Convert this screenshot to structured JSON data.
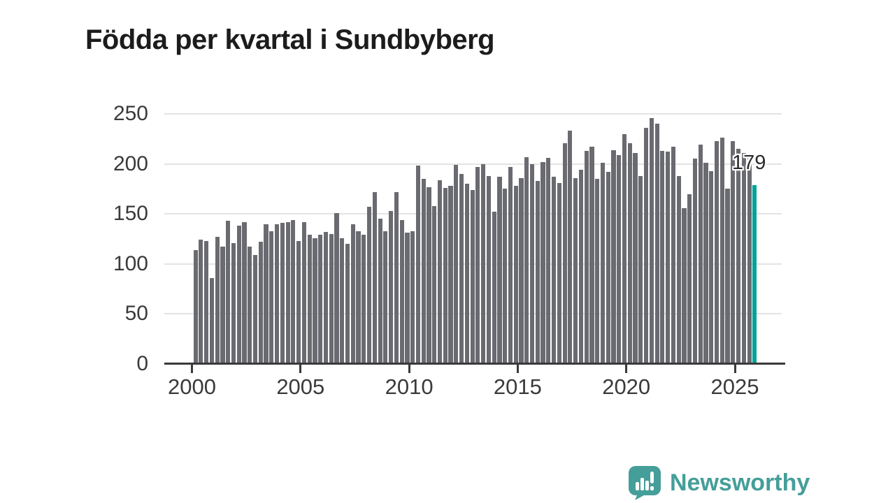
{
  "title": "Födda per kvartal i Sundbyberg",
  "chart_data": {
    "type": "bar",
    "title": "Födda per kvartal i Sundbyberg",
    "xlabel": "",
    "ylabel": "",
    "ylim": [
      0,
      250
    ],
    "grid": true,
    "y_ticks": [
      0,
      50,
      100,
      150,
      200,
      250
    ],
    "x_ticks": [
      2000,
      2005,
      2010,
      2015,
      2020,
      2025
    ],
    "x_start_year": 2000,
    "x_start_quarter": 1,
    "frequency": "quarterly",
    "bar_color": "#6a6a71",
    "highlight_color": "#00a39a",
    "highlight_index": 103,
    "highlight_label": "179",
    "values": [
      114,
      124,
      123,
      86,
      127,
      117,
      143,
      121,
      138,
      142,
      117,
      109,
      122,
      140,
      133,
      140,
      141,
      142,
      144,
      123,
      142,
      129,
      126,
      129,
      132,
      130,
      151,
      126,
      120,
      140,
      133,
      129,
      157,
      172,
      145,
      133,
      153,
      172,
      144,
      131,
      133,
      198,
      185,
      177,
      158,
      184,
      176,
      178,
      199,
      190,
      180,
      174,
      197,
      200,
      188,
      152,
      187,
      175,
      197,
      178,
      186,
      207,
      200,
      183,
      202,
      206,
      187,
      181,
      221,
      233,
      186,
      194,
      213,
      217,
      185,
      201,
      192,
      214,
      209,
      230,
      221,
      211,
      188,
      236,
      246,
      240,
      213,
      212,
      217,
      188,
      156,
      170,
      205,
      219,
      201,
      193,
      223,
      226,
      175,
      223,
      215,
      211,
      208,
      179
    ]
  },
  "annotation": {
    "text": "179"
  },
  "logo": {
    "text": "Newsworthy",
    "color": "#459e99",
    "icon": "newsworthy-speech-bubble-chart-icon"
  }
}
